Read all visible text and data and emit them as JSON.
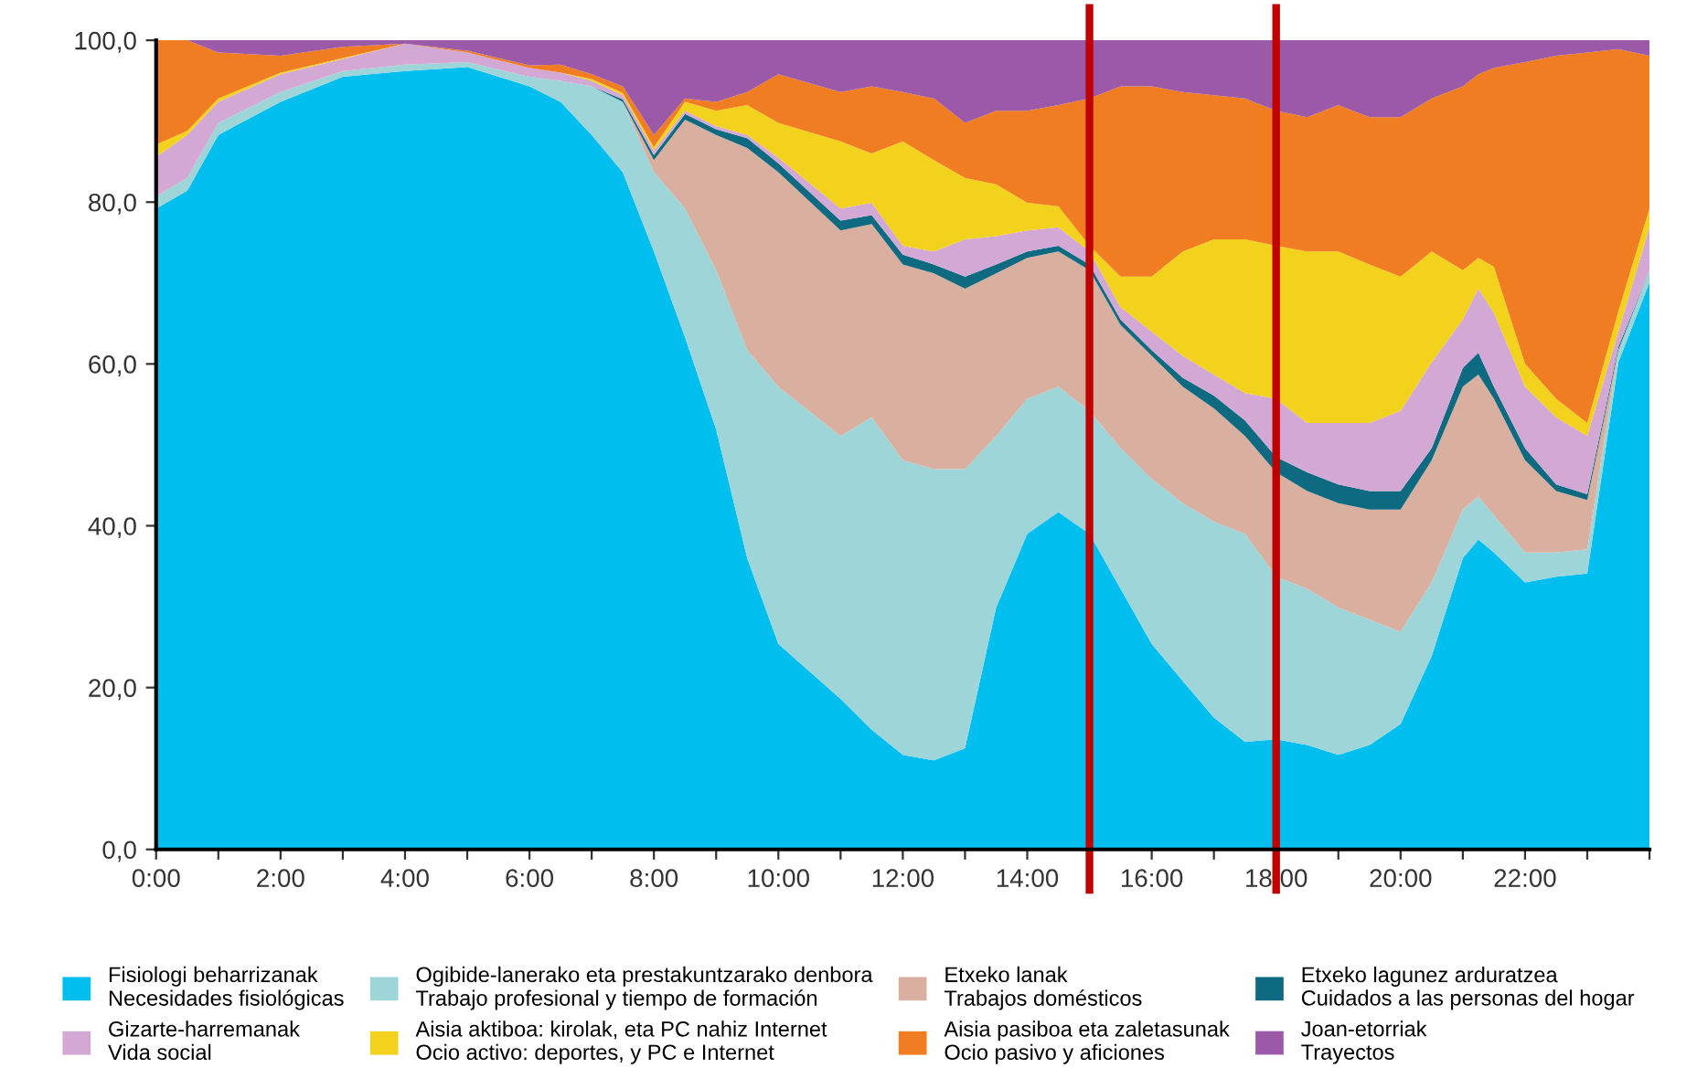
{
  "chart_data": {
    "type": "area",
    "stacked": true,
    "x": [
      0,
      0.5,
      1,
      2,
      3,
      4,
      5,
      6,
      6.5,
      7,
      7.5,
      8,
      8.5,
      9,
      9.5,
      10,
      11,
      11.5,
      12,
      12.5,
      13,
      13.5,
      14,
      14.5,
      15,
      15.5,
      16,
      16.5,
      17,
      17.5,
      18,
      18.5,
      19,
      19.5,
      20,
      20.5,
      21,
      21.25,
      21.5,
      22,
      22.5,
      23,
      23.5,
      24
    ],
    "series": [
      {
        "name": "Fisiologi beharrizanak\nNecesidades fisiológicas",
        "color": "#00bfef",
        "values": [
          79.2,
          81.4,
          88.3,
          92.4,
          95.5,
          96.2,
          96.7,
          94.3,
          92.4,
          88.3,
          83.7,
          73.9,
          63.3,
          51.9,
          36.0,
          25.4,
          18.6,
          14.8,
          11.7,
          11.0,
          12.5,
          29.9,
          39.0,
          41.7,
          39.0,
          32.2,
          25.4,
          20.8,
          16.3,
          13.3,
          13.6,
          12.9,
          11.7,
          12.9,
          15.5,
          23.9,
          36.0,
          38.3,
          36.7,
          33.0,
          33.7,
          34.1,
          60.2,
          70.1
        ]
      },
      {
        "name": "Ogibide-lanerako eta prestakuntzarako denbora\nTrabajo profesional y tiempo de formación",
        "color": "#9dd5d9",
        "values": [
          1.5,
          1.6,
          1.5,
          1.2,
          0.7,
          0.8,
          0.6,
          1.2,
          2.6,
          6.0,
          8.7,
          9.8,
          15.9,
          19.7,
          25.7,
          31.8,
          32.5,
          38.6,
          36.4,
          36.0,
          34.5,
          21.2,
          16.7,
          15.5,
          15.2,
          17.4,
          20.4,
          22.0,
          24.2,
          25.7,
          20.1,
          19.3,
          18.2,
          15.5,
          11.4,
          9.1,
          6.0,
          5.3,
          4.6,
          3.7,
          3.0,
          3.0,
          1.5,
          1.5
        ]
      },
      {
        "name": "Etxeko lanak\nTrabajos domésticos",
        "color": "#d9b0a0",
        "values": [
          0,
          0,
          0,
          0,
          0,
          0,
          0,
          0,
          0,
          0,
          0,
          1.5,
          11.0,
          16.7,
          25.0,
          26.5,
          25.4,
          23.9,
          24.2,
          24.2,
          22.3,
          20.1,
          17.4,
          16.7,
          17.4,
          15.2,
          15.2,
          14.4,
          14.0,
          12.1,
          12.9,
          12.1,
          12.9,
          13.6,
          15.1,
          15.1,
          15.2,
          15.1,
          14.4,
          11.4,
          7.6,
          6.1,
          0,
          0
        ]
      },
      {
        "name": "Etxeko lagunez arduratzea\nCuidados a las personas del hogar",
        "color": "#0e6a80",
        "values": [
          0,
          0,
          0,
          0,
          0,
          0,
          0,
          0,
          0,
          0,
          0.3,
          0.6,
          0.7,
          0.7,
          1.2,
          1.1,
          1.2,
          1.1,
          1.2,
          1.1,
          1.5,
          1.1,
          0.8,
          0.7,
          0.7,
          0.7,
          0.7,
          1.1,
          1.6,
          1.9,
          1.9,
          2.3,
          2.3,
          2.3,
          2.3,
          1.5,
          2.3,
          2.7,
          1.5,
          1.5,
          0.8,
          0.7,
          0.4,
          0
        ]
      },
      {
        "name": "Gizarte-harremanak\nVida social",
        "color": "#d4a8d4",
        "values": [
          4.9,
          5.3,
          2.6,
          2.2,
          1.5,
          2.6,
          1.2,
          1.1,
          1.0,
          0.7,
          0.5,
          0.6,
          0.4,
          0.4,
          0.4,
          0.7,
          1.5,
          1.5,
          1.1,
          1.6,
          4.6,
          3.5,
          2.6,
          2.3,
          1.6,
          1.5,
          2.3,
          2.7,
          2.6,
          3.4,
          7.2,
          6.1,
          7.6,
          8.4,
          9.9,
          10.6,
          6.0,
          7.9,
          9.1,
          7.6,
          8.3,
          7.2,
          1.9,
          5.3
        ]
      },
      {
        "name": "Aisia aktiboa: kirolak, eta PC nahiz Internet\nOcio activo: deportes, y PC e Internet",
        "color": "#f2d21c",
        "values": [
          1.5,
          0.5,
          0.4,
          0.2,
          0.1,
          0,
          0,
          0,
          0,
          0.2,
          0.3,
          0.4,
          1.1,
          1.9,
          3.7,
          4.3,
          8.3,
          6.1,
          12.9,
          11.3,
          7.6,
          6.4,
          3.4,
          2.6,
          0.7,
          3.8,
          6.8,
          12.9,
          16.7,
          19.0,
          18.9,
          21.2,
          21.2,
          19.6,
          16.6,
          13.7,
          6.1,
          3.8,
          5.7,
          2.8,
          2.3,
          1.6,
          2.5,
          2.3
        ]
      },
      {
        "name": "Aisia pasiboa eta zaletasunak\nOcio pasivo y aficiones",
        "color": "#f07d22",
        "values": [
          12.9,
          11.2,
          5.7,
          2.1,
          1.4,
          0,
          0.2,
          0.3,
          1.0,
          0.6,
          0.8,
          1.5,
          0.4,
          1.1,
          1.6,
          6.0,
          6.1,
          8.3,
          6.1,
          7.6,
          6.8,
          9.1,
          11.4,
          12.5,
          18.2,
          23.5,
          23.5,
          19.7,
          17.8,
          17.4,
          16.7,
          16.6,
          18.1,
          18.2,
          19.7,
          18.9,
          22.7,
          22.7,
          24.6,
          37.3,
          42.4,
          45.8,
          32.4,
          18.9
        ]
      },
      {
        "name": "Joan-etorriak\nTrayectos",
        "color": "#9b59a8",
        "values": [
          0,
          0,
          1.5,
          1.9,
          0.8,
          0.4,
          1.3,
          3.1,
          3.0,
          4.2,
          5.7,
          11.7,
          7.2,
          7.6,
          6.4,
          4.2,
          6.4,
          5.7,
          6.4,
          7.2,
          10.2,
          8.7,
          8.7,
          8.0,
          7.2,
          5.7,
          5.7,
          6.4,
          6.8,
          7.2,
          8.7,
          9.5,
          8.0,
          9.5,
          9.5,
          7.2,
          5.7,
          4.2,
          3.4,
          2.7,
          1.9,
          1.5,
          1.1,
          1.9
        ]
      }
    ],
    "xlim": [
      0,
      24
    ],
    "xticks": [
      {
        "value": 0,
        "label": "0:00"
      },
      {
        "value": 1,
        "label": null
      },
      {
        "value": 2,
        "label": "2:00"
      },
      {
        "value": 3,
        "label": null
      },
      {
        "value": 4,
        "label": "4:00"
      },
      {
        "value": 5,
        "label": null
      },
      {
        "value": 6,
        "label": "6:00"
      },
      {
        "value": 7,
        "label": null
      },
      {
        "value": 8,
        "label": "8:00"
      },
      {
        "value": 9,
        "label": null
      },
      {
        "value": 10,
        "label": "10:00"
      },
      {
        "value": 11,
        "label": null
      },
      {
        "value": 12,
        "label": "12:00"
      },
      {
        "value": 13,
        "label": null
      },
      {
        "value": 14,
        "label": "14:00"
      },
      {
        "value": 15,
        "label": null
      },
      {
        "value": 16,
        "label": "16:00"
      },
      {
        "value": 17,
        "label": null
      },
      {
        "value": 18,
        "label": "18:00"
      },
      {
        "value": 19,
        "label": null
      },
      {
        "value": 20,
        "label": "20:00"
      },
      {
        "value": 21,
        "label": null
      },
      {
        "value": 22,
        "label": "22:00"
      },
      {
        "value": 23,
        "label": null
      },
      {
        "value": 24,
        "label": null
      }
    ],
    "ylim": [
      0,
      100
    ],
    "yticks": [
      {
        "value": 0,
        "label": "0,0"
      },
      {
        "value": 20,
        "label": "20,0"
      },
      {
        "value": 40,
        "label": "40,0"
      },
      {
        "value": 60,
        "label": "60,0"
      },
      {
        "value": 80,
        "label": "80,0"
      },
      {
        "value": 100,
        "label": "100,0"
      }
    ],
    "ref_lines": [
      {
        "axis": "x",
        "value": 15,
        "color": "#c00000"
      },
      {
        "axis": "x",
        "value": 18,
        "color": "#c00000"
      }
    ],
    "grid": false,
    "legend": "bottom"
  }
}
